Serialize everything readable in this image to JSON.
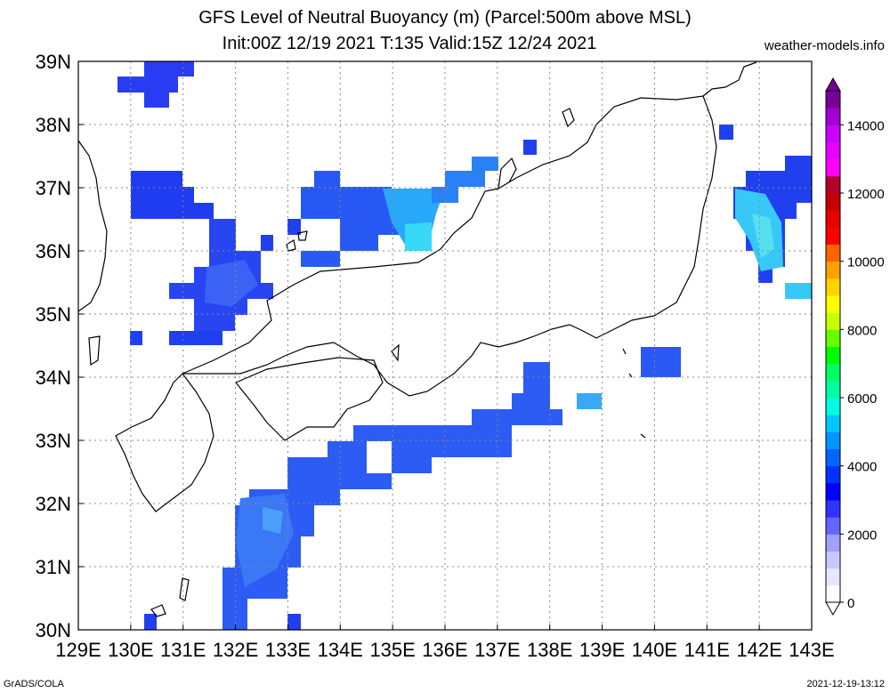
{
  "title": {
    "line1": "GFS Level of Neutral Buoyancy (m) (Parcel:500m above MSL)",
    "line2": "Init:00Z 12/19 2021 T:135 Valid:15Z 12/24 2021"
  },
  "credit": "weather-models.info",
  "footer": {
    "left": "GrADS/COLA",
    "right": "2021-12-19-13:12"
  },
  "map": {
    "lon_range": [
      129,
      143
    ],
    "lat_range": [
      30,
      39
    ],
    "lon_labels": [
      "129E",
      "130E",
      "131E",
      "132E",
      "133E",
      "134E",
      "135E",
      "136E",
      "137E",
      "138E",
      "139E",
      "140E",
      "141E",
      "142E",
      "143E"
    ],
    "lat_labels": [
      "30N",
      "31N",
      "32N",
      "33N",
      "34N",
      "35N",
      "36N",
      "37N",
      "38N",
      "39N"
    ],
    "gridlines": true
  },
  "colorbar": {
    "labels": [
      "0",
      "2000",
      "4000",
      "6000",
      "8000",
      "10000",
      "12000",
      "14000"
    ],
    "range": [
      0,
      15000
    ],
    "colors": [
      "#ffffff",
      "#e6e6ff",
      "#c8c8ff",
      "#a0a0ff",
      "#6464ff",
      "#3232ff",
      "#0000ff",
      "#0032ff",
      "#0064ff",
      "#0096ff",
      "#00c8ff",
      "#00ffe0",
      "#00ffa0",
      "#00ff60",
      "#00ff00",
      "#64ff00",
      "#c8ff00",
      "#ffff00",
      "#ffd200",
      "#ffa000",
      "#ff6400",
      "#ff0000",
      "#e60000",
      "#c80000",
      "#b40028",
      "#ff00ff",
      "#e600ff",
      "#c800ff",
      "#a000d2",
      "#780096"
    ]
  }
}
